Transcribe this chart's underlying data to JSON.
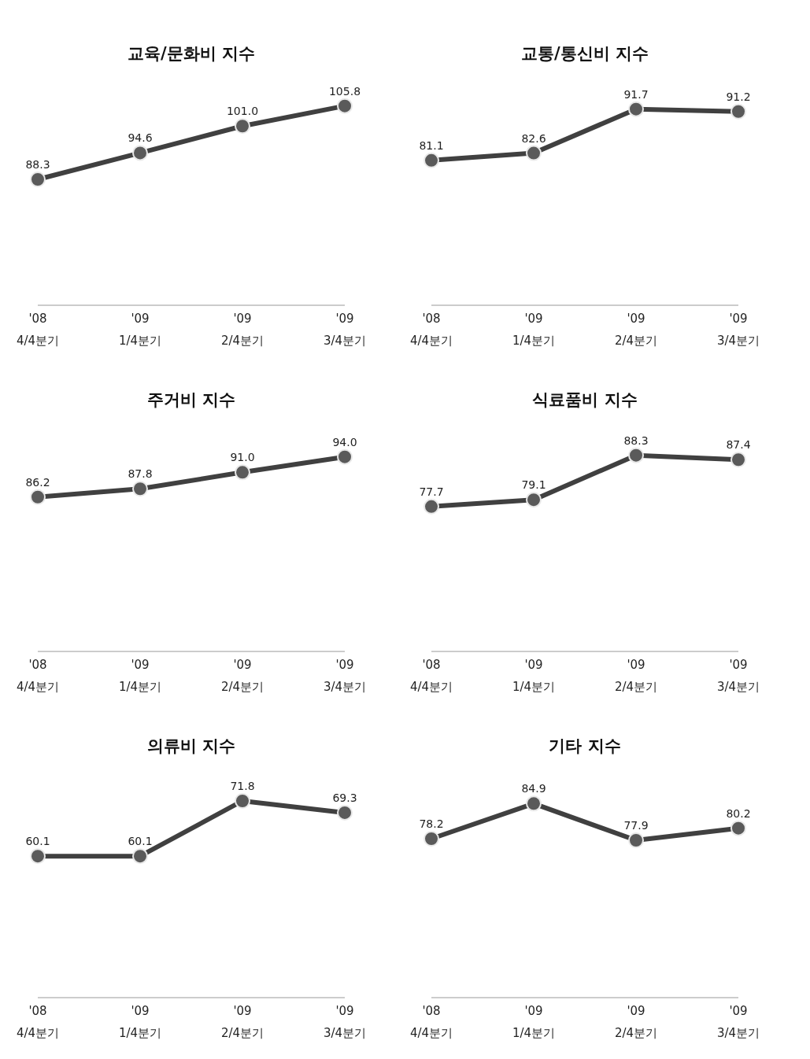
{
  "chart_data": [
    {
      "type": "line",
      "title": "교육/문화비 지수",
      "categories": [
        "'08\n4/4분기",
        "'09\n1/4분기",
        "'09\n2/4분기",
        "'09\n3/4분기"
      ],
      "values": [
        88.3,
        94.6,
        101.0,
        105.8
      ],
      "value_labels": [
        "88.3",
        "94.6",
        "101.0",
        "105.8"
      ],
      "color": "#404040",
      "tick_labels": "x",
      "marker": "circle"
    },
    {
      "type": "line",
      "title": "교통/통신비 지수",
      "categories": [
        "'08\n4/4분기",
        "'09\n1/4분기",
        "'09\n2/4분기",
        "'09\n3/4분기"
      ],
      "values": [
        81.1,
        82.6,
        91.7,
        91.2
      ],
      "value_labels": [
        "81.1",
        "82.6",
        "91.7",
        "91.2"
      ],
      "color": "#404040",
      "tick_labels": "x",
      "marker": "circle"
    },
    {
      "type": "line",
      "title": "주거비 지수",
      "categories": [
        "'08\n4/4분기",
        "'09\n1/4분기",
        "'09\n2/4분기",
        "'09\n3/4분기"
      ],
      "values": [
        86.2,
        87.8,
        91.0,
        94.0
      ],
      "value_labels": [
        "86.2",
        "87.8",
        "91.0",
        "94.0"
      ],
      "color": "#404040",
      "tick_labels": "x",
      "marker": "circle"
    },
    {
      "type": "line",
      "title": "식료품비 지수",
      "categories": [
        "'08\n4/4분기",
        "'09\n1/4분기",
        "'09\n2/4분기",
        "'09\n3/4분기"
      ],
      "values": [
        77.7,
        79.1,
        88.3,
        87.4
      ],
      "value_labels": [
        "77.7",
        "79.1",
        "88.3",
        "87.4"
      ],
      "color": "#404040",
      "tick_labels": "x",
      "marker": "circle"
    },
    {
      "type": "line",
      "title": "의류비 지수",
      "categories": [
        "'08\n4/4분기",
        "'09\n1/4분기",
        "'09\n2/4분기",
        "'09\n3/4분기"
      ],
      "values": [
        60.1,
        60.1,
        71.8,
        69.3
      ],
      "value_labels": [
        "60.1",
        "60.1",
        "71.8",
        "69.3"
      ],
      "color": "#404040",
      "tick_labels": "x",
      "marker": "circle"
    },
    {
      "type": "line",
      "title": "기타 지수",
      "categories": [
        "'08\n4/4분기",
        "'09\n1/4분기",
        "'09\n2/4분기",
        "'09\n3/4분기"
      ],
      "values": [
        78.2,
        84.9,
        77.9,
        80.2
      ],
      "value_labels": [
        "78.2",
        "84.9",
        "77.9",
        "80.2"
      ],
      "color": "#404040",
      "tick_labels": "x",
      "marker": "circle"
    }
  ]
}
